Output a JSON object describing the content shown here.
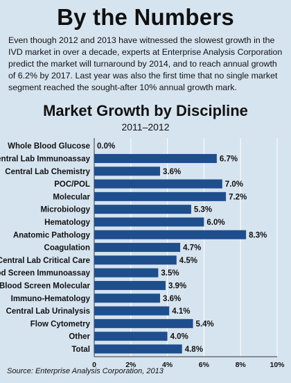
{
  "headline": "By the Numbers",
  "intro": "Even though 2012 and 2013 have witnessed the slowest growth in the IVD market in over a decade, experts at Enterprise Analysis Corporation predict the market will turnaround by 2014, and to reach annual growth of 6.2% by 2017. Last year was also the first time that no single market segment reached the sought-after 10% annual growth mark.",
  "source": "Source: Enterprise Analysis Corporation, 2013",
  "colors": {
    "bar": "#1f4e8c",
    "background": "#d6e4f0",
    "grid": "#ffffff"
  },
  "chart_data": {
    "type": "bar",
    "orientation": "horizontal",
    "title": "Market Growth by Discipline",
    "subtitle": "2011–2012",
    "categories": [
      "Whole Blood Glucose",
      "Central Lab Immunoassay",
      "Central Lab Chemistry",
      "POC/POL",
      "Molecular",
      "Microbiology",
      "Hematology",
      "Anatomic Pathology",
      "Coagulation",
      "Central Lab Critical Care",
      "Blood Screen Immunoassay",
      "Blood Screen Molecular",
      "Immuno-Hematology",
      "Central Lab Urinalysis",
      "Flow Cytometry",
      "Other",
      "Total"
    ],
    "values": [
      0.0,
      6.7,
      3.6,
      7.0,
      7.2,
      5.3,
      6.0,
      8.3,
      4.7,
      4.5,
      3.5,
      3.9,
      3.6,
      4.1,
      5.4,
      4.0,
      4.8
    ],
    "value_labels": [
      "0.0%",
      "6.7%",
      "3.6%",
      "7.0%",
      "7.2%",
      "5.3%",
      "6.0%",
      "8.3%",
      "4.7%",
      "4.5%",
      "3.5%",
      "3.9%",
      "3.6%",
      "4.1%",
      "5.4%",
      "4.0%",
      "4.8%"
    ],
    "xlim": [
      0,
      10
    ],
    "xticks": [
      0,
      2,
      4,
      6,
      8,
      10
    ],
    "xtick_labels": [
      "0",
      "2%",
      "4%",
      "6%",
      "8%",
      "10%"
    ],
    "grid": true
  }
}
